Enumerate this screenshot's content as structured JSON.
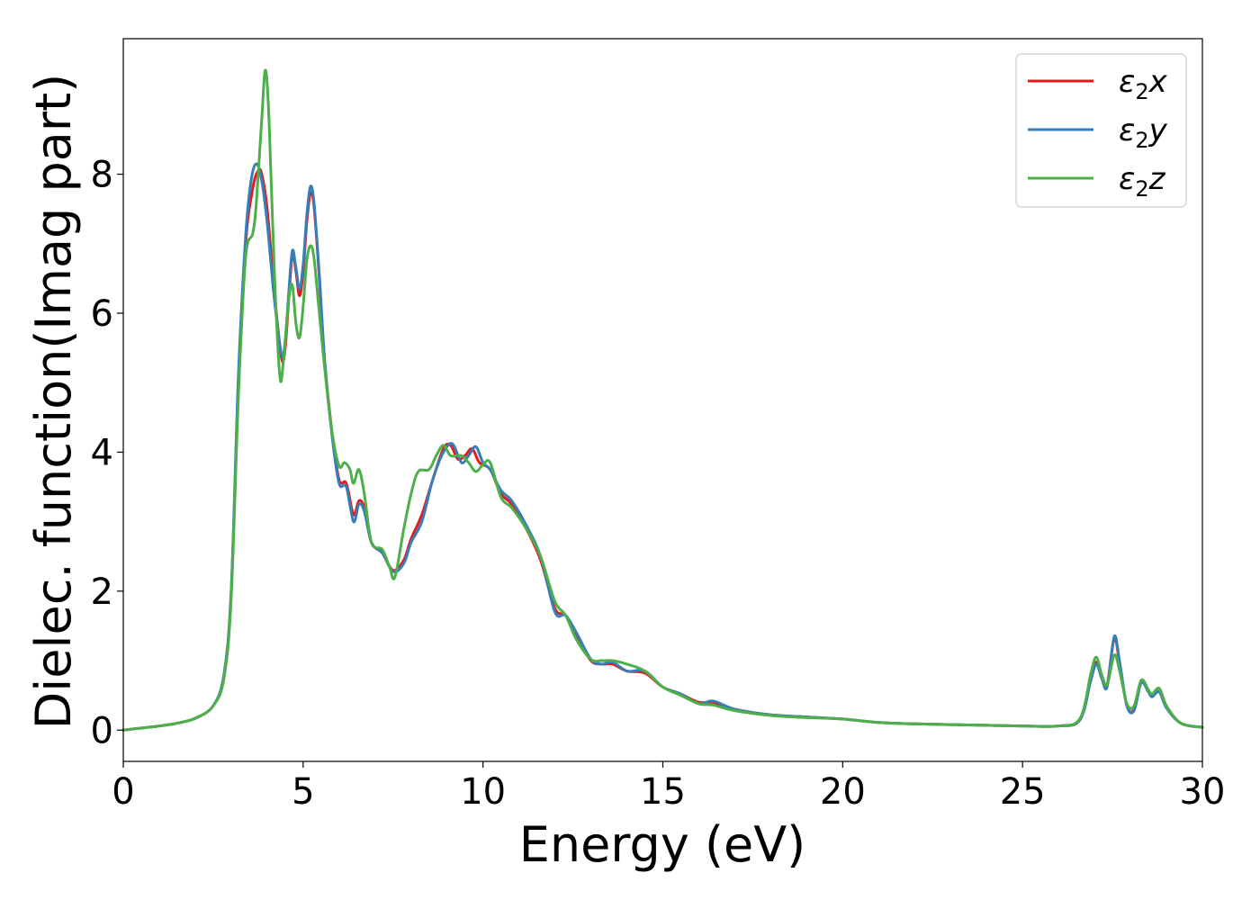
{
  "chart_data": {
    "type": "line",
    "title": "",
    "xlabel": "Energy (eV)",
    "ylabel": "Dielec. function(Imag part)",
    "xlim": [
      0,
      30
    ],
    "ylim": [
      -0.45,
      9.95
    ],
    "x_ticks": [
      "0",
      "5",
      "10",
      "15",
      "20",
      "25",
      "30"
    ],
    "y_ticks": [
      "0",
      "2",
      "4",
      "6",
      "8"
    ],
    "x_tick_values": [
      0,
      5,
      10,
      15,
      20,
      25,
      30
    ],
    "y_tick_values": [
      0,
      2,
      4,
      6,
      8
    ],
    "grid": false,
    "legend_position": "top-right",
    "series": [
      {
        "name": "ε₂x",
        "legend_main": "ε",
        "legend_sub": "2",
        "legend_suffix": "x",
        "color": "#e41a1c",
        "points": [
          [
            0,
            0
          ],
          [
            0.5,
            0.03
          ],
          [
            1,
            0.06
          ],
          [
            1.5,
            0.1
          ],
          [
            2,
            0.17
          ],
          [
            2.5,
            0.35
          ],
          [
            2.8,
            0.8
          ],
          [
            3.0,
            2.0
          ],
          [
            3.2,
            5.0
          ],
          [
            3.4,
            7.0
          ],
          [
            3.6,
            7.8
          ],
          [
            3.75,
            8.05
          ],
          [
            3.85,
            8.0
          ],
          [
            4.0,
            7.5
          ],
          [
            4.2,
            6.3
          ],
          [
            4.4,
            5.35
          ],
          [
            4.5,
            5.5
          ],
          [
            4.6,
            6.2
          ],
          [
            4.7,
            6.85
          ],
          [
            4.8,
            6.6
          ],
          [
            4.9,
            6.25
          ],
          [
            5.0,
            6.6
          ],
          [
            5.1,
            7.3
          ],
          [
            5.2,
            7.72
          ],
          [
            5.3,
            7.55
          ],
          [
            5.45,
            6.5
          ],
          [
            5.6,
            5.3
          ],
          [
            5.8,
            4.3
          ],
          [
            6.0,
            3.6
          ],
          [
            6.2,
            3.55
          ],
          [
            6.4,
            3.1
          ],
          [
            6.55,
            3.3
          ],
          [
            6.7,
            3.2
          ],
          [
            6.9,
            2.7
          ],
          [
            7.2,
            2.55
          ],
          [
            7.5,
            2.3
          ],
          [
            7.8,
            2.45
          ],
          [
            8.0,
            2.75
          ],
          [
            8.3,
            3.1
          ],
          [
            8.6,
            3.6
          ],
          [
            8.9,
            4.05
          ],
          [
            9.1,
            4.1
          ],
          [
            9.3,
            3.9
          ],
          [
            9.5,
            3.95
          ],
          [
            9.7,
            4.05
          ],
          [
            9.9,
            3.85
          ],
          [
            10.2,
            3.75
          ],
          [
            10.5,
            3.4
          ],
          [
            10.8,
            3.25
          ],
          [
            11.2,
            2.9
          ],
          [
            11.6,
            2.45
          ],
          [
            12.0,
            1.75
          ],
          [
            12.3,
            1.65
          ],
          [
            12.6,
            1.35
          ],
          [
            13.0,
            1.0
          ],
          [
            13.3,
            0.95
          ],
          [
            13.6,
            0.95
          ],
          [
            14.0,
            0.85
          ],
          [
            14.5,
            0.82
          ],
          [
            15.0,
            0.62
          ],
          [
            15.5,
            0.52
          ],
          [
            16.0,
            0.4
          ],
          [
            16.4,
            0.4
          ],
          [
            17.0,
            0.3
          ],
          [
            18.0,
            0.22
          ],
          [
            19.0,
            0.19
          ],
          [
            20.0,
            0.16
          ],
          [
            21.0,
            0.11
          ],
          [
            22.0,
            0.09
          ],
          [
            23.0,
            0.08
          ],
          [
            24.0,
            0.07
          ],
          [
            25.0,
            0.06
          ],
          [
            26.0,
            0.06
          ],
          [
            26.6,
            0.15
          ],
          [
            26.9,
            0.75
          ],
          [
            27.05,
            0.98
          ],
          [
            27.2,
            0.75
          ],
          [
            27.35,
            0.65
          ],
          [
            27.55,
            1.32
          ],
          [
            27.7,
            0.95
          ],
          [
            27.9,
            0.35
          ],
          [
            28.1,
            0.3
          ],
          [
            28.3,
            0.7
          ],
          [
            28.5,
            0.55
          ],
          [
            28.6,
            0.5
          ],
          [
            28.8,
            0.6
          ],
          [
            29.0,
            0.35
          ],
          [
            29.4,
            0.1
          ],
          [
            30.0,
            0.04
          ]
        ]
      },
      {
        "name": "ε₂y",
        "legend_main": "ε",
        "legend_sub": "2",
        "legend_suffix": "y",
        "color": "#377eb8",
        "points": [
          [
            0,
            0
          ],
          [
            0.5,
            0.03
          ],
          [
            1,
            0.06
          ],
          [
            1.5,
            0.1
          ],
          [
            2,
            0.17
          ],
          [
            2.5,
            0.35
          ],
          [
            2.8,
            0.8
          ],
          [
            3.0,
            2.0
          ],
          [
            3.2,
            5.1
          ],
          [
            3.4,
            7.1
          ],
          [
            3.55,
            7.9
          ],
          [
            3.7,
            8.15
          ],
          [
            3.85,
            7.9
          ],
          [
            4.0,
            7.3
          ],
          [
            4.2,
            6.2
          ],
          [
            4.4,
            5.4
          ],
          [
            4.5,
            5.6
          ],
          [
            4.6,
            6.3
          ],
          [
            4.7,
            6.9
          ],
          [
            4.8,
            6.65
          ],
          [
            4.9,
            6.35
          ],
          [
            5.0,
            6.7
          ],
          [
            5.1,
            7.4
          ],
          [
            5.2,
            7.82
          ],
          [
            5.3,
            7.6
          ],
          [
            5.45,
            6.55
          ],
          [
            5.6,
            5.3
          ],
          [
            5.8,
            4.25
          ],
          [
            6.0,
            3.55
          ],
          [
            6.2,
            3.5
          ],
          [
            6.4,
            3.0
          ],
          [
            6.55,
            3.25
          ],
          [
            6.7,
            3.15
          ],
          [
            6.9,
            2.7
          ],
          [
            7.2,
            2.55
          ],
          [
            7.5,
            2.28
          ],
          [
            7.8,
            2.4
          ],
          [
            8.0,
            2.7
          ],
          [
            8.3,
            3.0
          ],
          [
            8.6,
            3.6
          ],
          [
            8.9,
            4.0
          ],
          [
            9.15,
            4.12
          ],
          [
            9.4,
            3.85
          ],
          [
            9.6,
            3.95
          ],
          [
            9.8,
            4.08
          ],
          [
            10.0,
            3.85
          ],
          [
            10.2,
            3.75
          ],
          [
            10.5,
            3.45
          ],
          [
            10.8,
            3.3
          ],
          [
            11.2,
            2.95
          ],
          [
            11.6,
            2.5
          ],
          [
            12.0,
            1.7
          ],
          [
            12.3,
            1.65
          ],
          [
            12.6,
            1.4
          ],
          [
            13.0,
            1.02
          ],
          [
            13.3,
            0.95
          ],
          [
            13.6,
            0.98
          ],
          [
            14.0,
            0.85
          ],
          [
            14.5,
            0.85
          ],
          [
            15.0,
            0.62
          ],
          [
            15.5,
            0.52
          ],
          [
            16.0,
            0.38
          ],
          [
            16.4,
            0.42
          ],
          [
            17.0,
            0.3
          ],
          [
            18.0,
            0.22
          ],
          [
            19.0,
            0.19
          ],
          [
            20.0,
            0.16
          ],
          [
            21.0,
            0.11
          ],
          [
            22.0,
            0.09
          ],
          [
            23.0,
            0.08
          ],
          [
            24.0,
            0.07
          ],
          [
            25.0,
            0.06
          ],
          [
            26.0,
            0.06
          ],
          [
            26.6,
            0.15
          ],
          [
            26.9,
            0.72
          ],
          [
            27.05,
            0.95
          ],
          [
            27.2,
            0.75
          ],
          [
            27.35,
            0.62
          ],
          [
            27.55,
            1.35
          ],
          [
            27.7,
            0.98
          ],
          [
            27.9,
            0.35
          ],
          [
            28.1,
            0.28
          ],
          [
            28.3,
            0.68
          ],
          [
            28.5,
            0.55
          ],
          [
            28.6,
            0.48
          ],
          [
            28.8,
            0.55
          ],
          [
            29.0,
            0.32
          ],
          [
            29.4,
            0.1
          ],
          [
            30.0,
            0.04
          ]
        ]
      },
      {
        "name": "ε₂z",
        "legend_main": "ε",
        "legend_sub": "2",
        "legend_suffix": "z",
        "color": "#4daf4a",
        "points": [
          [
            0,
            0
          ],
          [
            0.5,
            0.03
          ],
          [
            1,
            0.06
          ],
          [
            1.5,
            0.1
          ],
          [
            2,
            0.17
          ],
          [
            2.5,
            0.35
          ],
          [
            2.8,
            0.75
          ],
          [
            3.0,
            1.9
          ],
          [
            3.2,
            4.8
          ],
          [
            3.4,
            6.8
          ],
          [
            3.6,
            7.15
          ],
          [
            3.7,
            7.6
          ],
          [
            3.85,
            8.8
          ],
          [
            3.95,
            9.5
          ],
          [
            4.05,
            8.8
          ],
          [
            4.2,
            6.6
          ],
          [
            4.35,
            5.1
          ],
          [
            4.45,
            5.3
          ],
          [
            4.6,
            6.2
          ],
          [
            4.7,
            6.4
          ],
          [
            4.8,
            5.85
          ],
          [
            4.9,
            5.65
          ],
          [
            5.0,
            6.1
          ],
          [
            5.1,
            6.75
          ],
          [
            5.2,
            6.97
          ],
          [
            5.3,
            6.8
          ],
          [
            5.45,
            6.0
          ],
          [
            5.6,
            5.2
          ],
          [
            5.8,
            4.3
          ],
          [
            6.0,
            3.8
          ],
          [
            6.15,
            3.85
          ],
          [
            6.3,
            3.75
          ],
          [
            6.4,
            3.55
          ],
          [
            6.55,
            3.75
          ],
          [
            6.7,
            3.4
          ],
          [
            6.9,
            2.7
          ],
          [
            7.2,
            2.6
          ],
          [
            7.4,
            2.35
          ],
          [
            7.55,
            2.2
          ],
          [
            7.8,
            2.9
          ],
          [
            8.0,
            3.4
          ],
          [
            8.2,
            3.72
          ],
          [
            8.5,
            3.75
          ],
          [
            8.7,
            3.95
          ],
          [
            8.9,
            4.1
          ],
          [
            9.1,
            3.95
          ],
          [
            9.4,
            3.95
          ],
          [
            9.6,
            3.85
          ],
          [
            9.8,
            3.72
          ],
          [
            10.0,
            3.82
          ],
          [
            10.2,
            3.85
          ],
          [
            10.5,
            3.35
          ],
          [
            10.8,
            3.2
          ],
          [
            11.2,
            2.9
          ],
          [
            11.6,
            2.5
          ],
          [
            12.0,
            1.85
          ],
          [
            12.3,
            1.65
          ],
          [
            12.6,
            1.3
          ],
          [
            13.0,
            1.02
          ],
          [
            13.3,
            1.0
          ],
          [
            13.6,
            1.0
          ],
          [
            14.0,
            0.95
          ],
          [
            14.5,
            0.85
          ],
          [
            15.0,
            0.62
          ],
          [
            15.5,
            0.5
          ],
          [
            16.0,
            0.38
          ],
          [
            16.4,
            0.36
          ],
          [
            17.0,
            0.28
          ],
          [
            18.0,
            0.21
          ],
          [
            19.0,
            0.18
          ],
          [
            20.0,
            0.16
          ],
          [
            21.0,
            0.11
          ],
          [
            22.0,
            0.09
          ],
          [
            23.0,
            0.08
          ],
          [
            24.0,
            0.07
          ],
          [
            25.0,
            0.06
          ],
          [
            26.0,
            0.06
          ],
          [
            26.6,
            0.17
          ],
          [
            26.9,
            0.82
          ],
          [
            27.05,
            1.05
          ],
          [
            27.2,
            0.8
          ],
          [
            27.35,
            0.65
          ],
          [
            27.55,
            1.08
          ],
          [
            27.7,
            0.85
          ],
          [
            27.9,
            0.38
          ],
          [
            28.1,
            0.35
          ],
          [
            28.3,
            0.72
          ],
          [
            28.5,
            0.58
          ],
          [
            28.6,
            0.52
          ],
          [
            28.8,
            0.6
          ],
          [
            29.0,
            0.35
          ],
          [
            29.4,
            0.1
          ],
          [
            30.0,
            0.04
          ]
        ]
      }
    ]
  }
}
